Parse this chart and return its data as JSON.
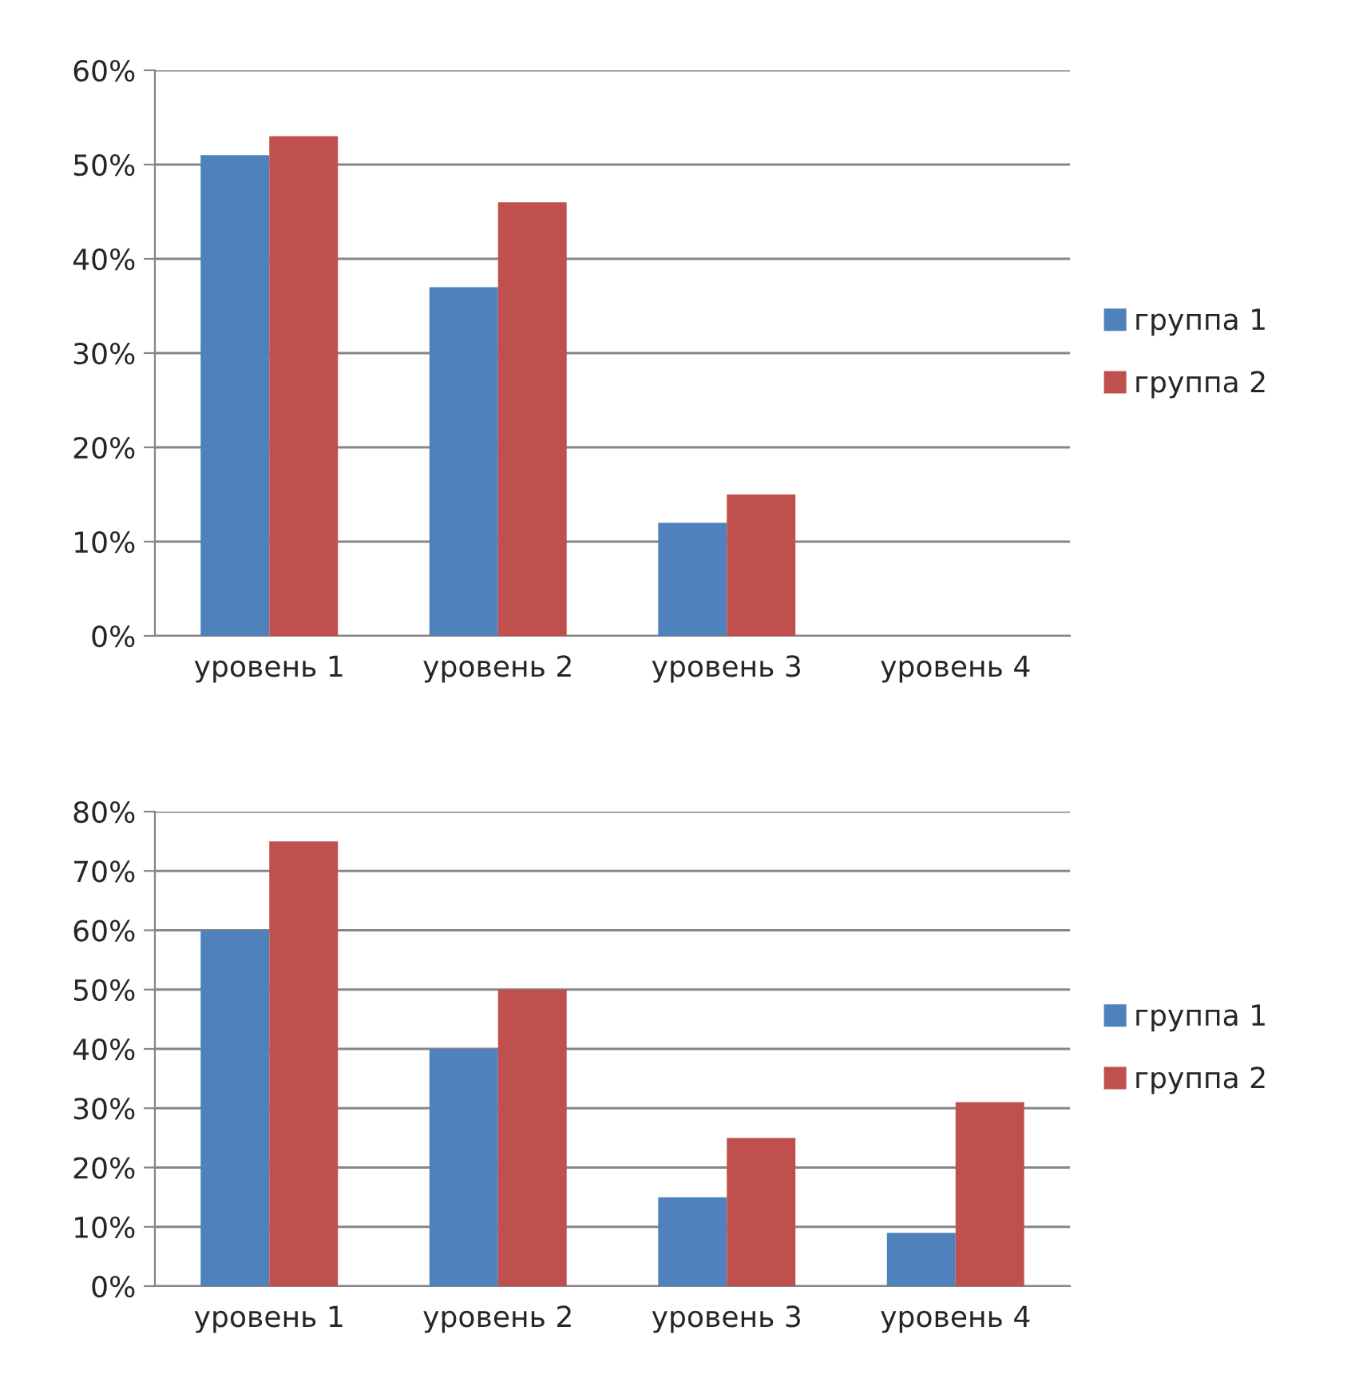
{
  "chart_data": [
    {
      "type": "bar",
      "categories": [
        "уровень 1",
        "уровень 2",
        "уровень 3",
        "уровень 4"
      ],
      "series": [
        {
          "name": "группа 1",
          "color": "#4f81bd",
          "values": [
            51,
            37,
            12,
            null
          ]
        },
        {
          "name": "группа 2",
          "color": "#c0504d",
          "values": [
            53,
            46,
            15,
            null
          ]
        }
      ],
      "ylim": [
        0,
        60
      ],
      "yticks": [
        {
          "value": 0,
          "label": "0%"
        },
        {
          "value": 10,
          "label": "10%"
        },
        {
          "value": 20,
          "label": "20%"
        },
        {
          "value": 30,
          "label": "30%"
        },
        {
          "value": 40,
          "label": "40%"
        },
        {
          "value": 50,
          "label": "50%"
        },
        {
          "value": 60,
          "label": "60%"
        }
      ],
      "grid": "y",
      "legend": "right"
    },
    {
      "type": "bar",
      "categories": [
        "уровень 1",
        "уровень 2",
        "уровень 3",
        "уровень 4"
      ],
      "series": [
        {
          "name": "группа 1",
          "color": "#4f81bd",
          "values": [
            60,
            40,
            15,
            9
          ]
        },
        {
          "name": "группа 2",
          "color": "#c0504d",
          "values": [
            75,
            50,
            25,
            31
          ]
        }
      ],
      "ylim": [
        0,
        80
      ],
      "yticks": [
        {
          "value": 0,
          "label": "0%"
        },
        {
          "value": 10,
          "label": "10%"
        },
        {
          "value": 20,
          "label": "20%"
        },
        {
          "value": 30,
          "label": "30%"
        },
        {
          "value": 40,
          "label": "40%"
        },
        {
          "value": 50,
          "label": "50%"
        },
        {
          "value": 60,
          "label": "60%"
        },
        {
          "value": 70,
          "label": "70%"
        },
        {
          "value": 80,
          "label": "80%"
        }
      ],
      "grid": "y",
      "legend": "right"
    }
  ]
}
